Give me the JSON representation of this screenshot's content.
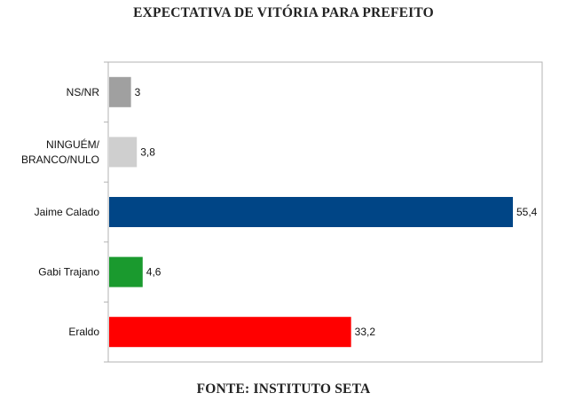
{
  "chart_data": {
    "type": "bar",
    "orientation": "horizontal",
    "title": "EXPECTATIVA DE VITÓRIA PARA PREFEITO",
    "source": "FONTE: INSTITUTO SETA",
    "categories": [
      [
        "NS/NR"
      ],
      [
        "NINGUÉM/",
        "BRANCO/NULO"
      ],
      [
        "Jaime Calado"
      ],
      [
        "Gabi Trajano"
      ],
      [
        "Eraldo"
      ]
    ],
    "values": [
      3,
      3.8,
      55.4,
      4.6,
      33.2
    ],
    "value_labels": [
      "3",
      "3,8",
      "55,4",
      "4,6",
      "33,2"
    ],
    "colors": [
      "#a0a0a0",
      "#cfcfcf",
      "#004586",
      "#1a9a2e",
      "#ff0000"
    ],
    "xlim": [
      0,
      60
    ],
    "grid": false,
    "legend": "none"
  }
}
